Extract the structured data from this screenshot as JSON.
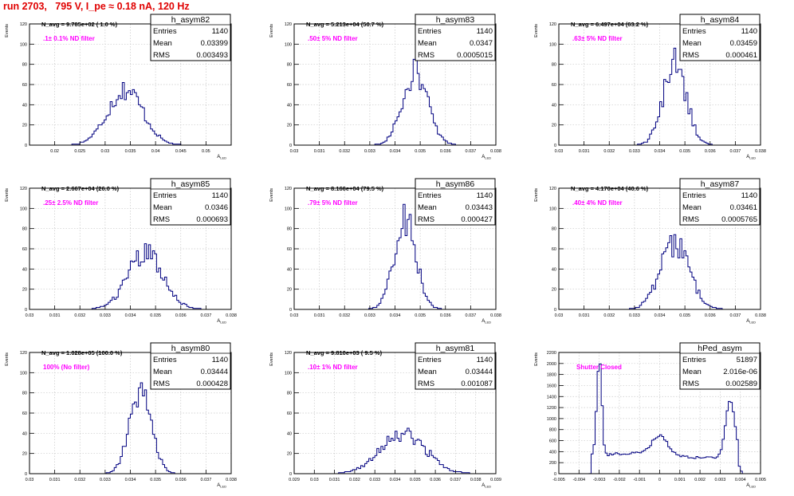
{
  "run_title": "run 2703,   795 V, I_pe ≈ 0.18 nA, 120 Hz",
  "y_axis_label": "Events",
  "chart_data": [
    {
      "type": "histogram",
      "name": "h_asym82",
      "stats": {
        "entries_label": "Entries",
        "entries": "1140",
        "mean_label": "Mean",
        "mean": "0.03399",
        "rms_label": "RMS",
        "rms": "0.003493"
      },
      "n_avg": "N_avg = 9.785e+02 ( 1.0 %)",
      "filter": ".1± 0.1% ND filter",
      "xlim": [
        0.015,
        0.055
      ],
      "ylim": [
        0,
        120
      ],
      "xticks": [
        "0.02",
        "0.025",
        "0.03",
        "0.035",
        "0.04",
        "0.045",
        "0.05"
      ],
      "xtick_vals": [
        0.02,
        0.025,
        0.03,
        0.035,
        0.04,
        0.045,
        0.05
      ],
      "yticks": [
        "0",
        "20",
        "40",
        "60",
        "80",
        "100",
        "120"
      ],
      "ytick_vals": [
        0,
        20,
        40,
        60,
        80,
        100,
        120
      ],
      "xlabel": "A_LED",
      "peak_mu": 0.034,
      "peak_sigma": 0.0035,
      "peak_height": 55
    },
    {
      "type": "histogram",
      "name": "h_asym83",
      "stats": {
        "entries_label": "Entries",
        "entries": "1140",
        "mean_label": "Mean",
        "mean": "0.0347",
        "rms_label": "RMS",
        "rms": "0.0005015"
      },
      "n_avg": "N_avg = 5.213e+04 (50.7 %)",
      "filter": ".50± 5% ND filter",
      "xlim": [
        0.03,
        0.038
      ],
      "ylim": [
        0,
        120
      ],
      "xticks": [
        "0.03",
        "0.031",
        "0.032",
        "0.033",
        "0.034",
        "0.035",
        "0.036",
        "0.037",
        "0.038"
      ],
      "xtick_vals": [
        0.03,
        0.031,
        0.032,
        0.033,
        0.034,
        0.035,
        0.036,
        0.037,
        0.038
      ],
      "yticks": [
        "0",
        "20",
        "40",
        "60",
        "80",
        "100",
        "120"
      ],
      "ytick_vals": [
        0,
        20,
        40,
        60,
        80,
        100,
        120
      ],
      "xlabel": "A_LED",
      "peak_mu": 0.0348,
      "peak_sigma": 0.0005,
      "peak_height": 72
    },
    {
      "type": "histogram",
      "name": "h_asym84",
      "stats": {
        "entries_label": "Entries",
        "entries": "1140",
        "mean_label": "Mean",
        "mean": "0.03459",
        "rms_label": "RMS",
        "rms": "0.000461"
      },
      "n_avg": "N_avg = 6.497e+04 (63.2 %)",
      "filter": ".63± 5% ND filter",
      "xlim": [
        0.03,
        0.038
      ],
      "ylim": [
        0,
        120
      ],
      "xticks": [
        "0.03",
        "0.031",
        "0.032",
        "0.033",
        "0.034",
        "0.035",
        "0.036",
        "0.037",
        "0.038"
      ],
      "xtick_vals": [
        0.03,
        0.031,
        0.032,
        0.033,
        0.034,
        0.035,
        0.036,
        0.037,
        0.038
      ],
      "yticks": [
        "0",
        "20",
        "40",
        "60",
        "80",
        "100",
        "120"
      ],
      "ytick_vals": [
        0,
        20,
        40,
        60,
        80,
        100,
        120
      ],
      "xlabel": "A_LED",
      "peak_mu": 0.0346,
      "peak_sigma": 0.00046,
      "peak_height": 80
    },
    {
      "type": "histogram",
      "name": "h_asym85",
      "stats": {
        "entries_label": "Entries",
        "entries": "1140",
        "mean_label": "Mean",
        "mean": "0.0346",
        "rms_label": "RMS",
        "rms": "0.000693"
      },
      "n_avg": "N_avg = 2.667e+04 (26.0 %)",
      "filter": ".25± 2.5% ND filter",
      "xlim": [
        0.03,
        0.038
      ],
      "ylim": [
        0,
        120
      ],
      "xticks": [
        "0.03",
        "0.031",
        "0.032",
        "0.033",
        "0.034",
        "0.035",
        "0.036",
        "0.037",
        "0.038"
      ],
      "xtick_vals": [
        0.03,
        0.031,
        0.032,
        0.033,
        0.034,
        0.035,
        0.036,
        0.037,
        0.038
      ],
      "yticks": [
        "0",
        "20",
        "40",
        "60",
        "80",
        "100",
        "120"
      ],
      "ytick_vals": [
        0,
        20,
        40,
        60,
        80,
        100,
        120
      ],
      "xlabel": "A_LED",
      "peak_mu": 0.0346,
      "peak_sigma": 0.0007,
      "peak_height": 55
    },
    {
      "type": "histogram",
      "name": "h_asym86",
      "stats": {
        "entries_label": "Entries",
        "entries": "1140",
        "mean_label": "Mean",
        "mean": "0.03443",
        "rms_label": "RMS",
        "rms": "0.000427"
      },
      "n_avg": "N_avg = 8.166e+04 (79.5 %)",
      "filter": ".79± 5% ND filter",
      "xlim": [
        0.03,
        0.038
      ],
      "ylim": [
        0,
        120
      ],
      "xticks": [
        "0.03",
        "0.031",
        "0.032",
        "0.033",
        "0.034",
        "0.035",
        "0.036",
        "0.037",
        "0.038"
      ],
      "xtick_vals": [
        0.03,
        0.031,
        0.032,
        0.033,
        0.034,
        0.035,
        0.036,
        0.037,
        0.038
      ],
      "yticks": [
        "0",
        "20",
        "40",
        "60",
        "80",
        "100",
        "120"
      ],
      "ytick_vals": [
        0,
        20,
        40,
        60,
        80,
        100,
        120
      ],
      "xlabel": "A_LED",
      "peak_mu": 0.0344,
      "peak_sigma": 0.00043,
      "peak_height": 90
    },
    {
      "type": "histogram",
      "name": "h_asym87",
      "stats": {
        "entries_label": "Entries",
        "entries": "1140",
        "mean_label": "Mean",
        "mean": "0.03461",
        "rms_label": "RMS",
        "rms": "0.0005765"
      },
      "n_avg": "N_avg = 4.170e+04 (40.6 %)",
      "filter": ".40± 4% ND filter",
      "xlim": [
        0.03,
        0.038
      ],
      "ylim": [
        0,
        120
      ],
      "xticks": [
        "0.03",
        "0.031",
        "0.032",
        "0.033",
        "0.034",
        "0.035",
        "0.036",
        "0.037",
        "0.038"
      ],
      "xtick_vals": [
        0.03,
        0.031,
        0.032,
        0.033,
        0.034,
        0.035,
        0.036,
        0.037,
        0.038
      ],
      "yticks": [
        "0",
        "20",
        "40",
        "60",
        "80",
        "100",
        "120"
      ],
      "ytick_vals": [
        0,
        20,
        40,
        60,
        80,
        100,
        120
      ],
      "xlabel": "A_LED",
      "peak_mu": 0.0346,
      "peak_sigma": 0.00058,
      "peak_height": 65
    },
    {
      "type": "histogram",
      "name": "h_asym80",
      "stats": {
        "entries_label": "Entries",
        "entries": "1140",
        "mean_label": "Mean",
        "mean": "0.03444",
        "rms_label": "RMS",
        "rms": "0.000428"
      },
      "n_avg": "N_avg = 1.028e+05 (100.0 %)",
      "filter": "100% (No filter)",
      "xlim": [
        0.03,
        0.038
      ],
      "ylim": [
        0,
        120
      ],
      "xticks": [
        "0.03",
        "0.031",
        "0.032",
        "0.033",
        "0.034",
        "0.035",
        "0.036",
        "0.037",
        "0.038"
      ],
      "xtick_vals": [
        0.03,
        0.031,
        0.032,
        0.033,
        0.034,
        0.035,
        0.036,
        0.037,
        0.038
      ],
      "yticks": [
        "0",
        "20",
        "40",
        "60",
        "80",
        "100",
        "120"
      ],
      "ytick_vals": [
        0,
        20,
        40,
        60,
        80,
        100,
        120
      ],
      "xlabel": "A_LED",
      "peak_mu": 0.0344,
      "peak_sigma": 0.00043,
      "peak_height": 82
    },
    {
      "type": "histogram",
      "name": "h_asym81",
      "stats": {
        "entries_label": "Entries",
        "entries": "1140",
        "mean_label": "Mean",
        "mean": "0.03444",
        "rms_label": "RMS",
        "rms": "0.001087"
      },
      "n_avg": "N_avg = 9.810e+03 ( 9.5 %)",
      "filter": ".10± 1% ND filter",
      "xlim": [
        0.029,
        0.039
      ],
      "ylim": [
        0,
        120
      ],
      "xticks": [
        "0.029",
        "0.03",
        "0.031",
        "0.032",
        "0.033",
        "0.034",
        "0.035",
        "0.036",
        "0.037",
        "0.038",
        "0.039"
      ],
      "xtick_vals": [
        0.029,
        0.03,
        0.031,
        0.032,
        0.033,
        0.034,
        0.035,
        0.036,
        0.037,
        0.038,
        0.039
      ],
      "yticks": [
        "0",
        "20",
        "40",
        "60",
        "80",
        "100",
        "120"
      ],
      "ytick_vals": [
        0,
        20,
        40,
        60,
        80,
        100,
        120
      ],
      "xlabel": "A_LED",
      "peak_mu": 0.0344,
      "peak_sigma": 0.0011,
      "peak_height": 40
    },
    {
      "type": "histogram",
      "name": "hPed_asym",
      "stats": {
        "entries_label": "Entries",
        "entries": "51897",
        "mean_label": "Mean",
        "mean": "2.016e-06",
        "rms_label": "RMS",
        "rms": "0.002589"
      },
      "n_avg": "",
      "filter": "Shutter Closed",
      "xlim": [
        -0.005,
        0.005
      ],
      "ylim": [
        0,
        2200
      ],
      "xticks": [
        "-0.005",
        "-0.004",
        "-0.003",
        "-0.002",
        "-0.001",
        "0",
        "0.001",
        "0.002",
        "0.003",
        "0.004",
        "0.005"
      ],
      "xtick_vals": [
        -0.005,
        -0.004,
        -0.003,
        -0.002,
        -0.001,
        0,
        0.001,
        0.002,
        0.003,
        0.004,
        0.005
      ],
      "yticks": [
        "0",
        "200",
        "400",
        "600",
        "800",
        "1000",
        "1200",
        "1400",
        "1600",
        "1800",
        "2000",
        "2200"
      ],
      "ytick_vals": [
        0,
        200,
        400,
        600,
        800,
        1000,
        1200,
        1400,
        1600,
        1800,
        2000,
        2200
      ],
      "xlabel": "A_LED",
      "pedestal": true
    }
  ]
}
